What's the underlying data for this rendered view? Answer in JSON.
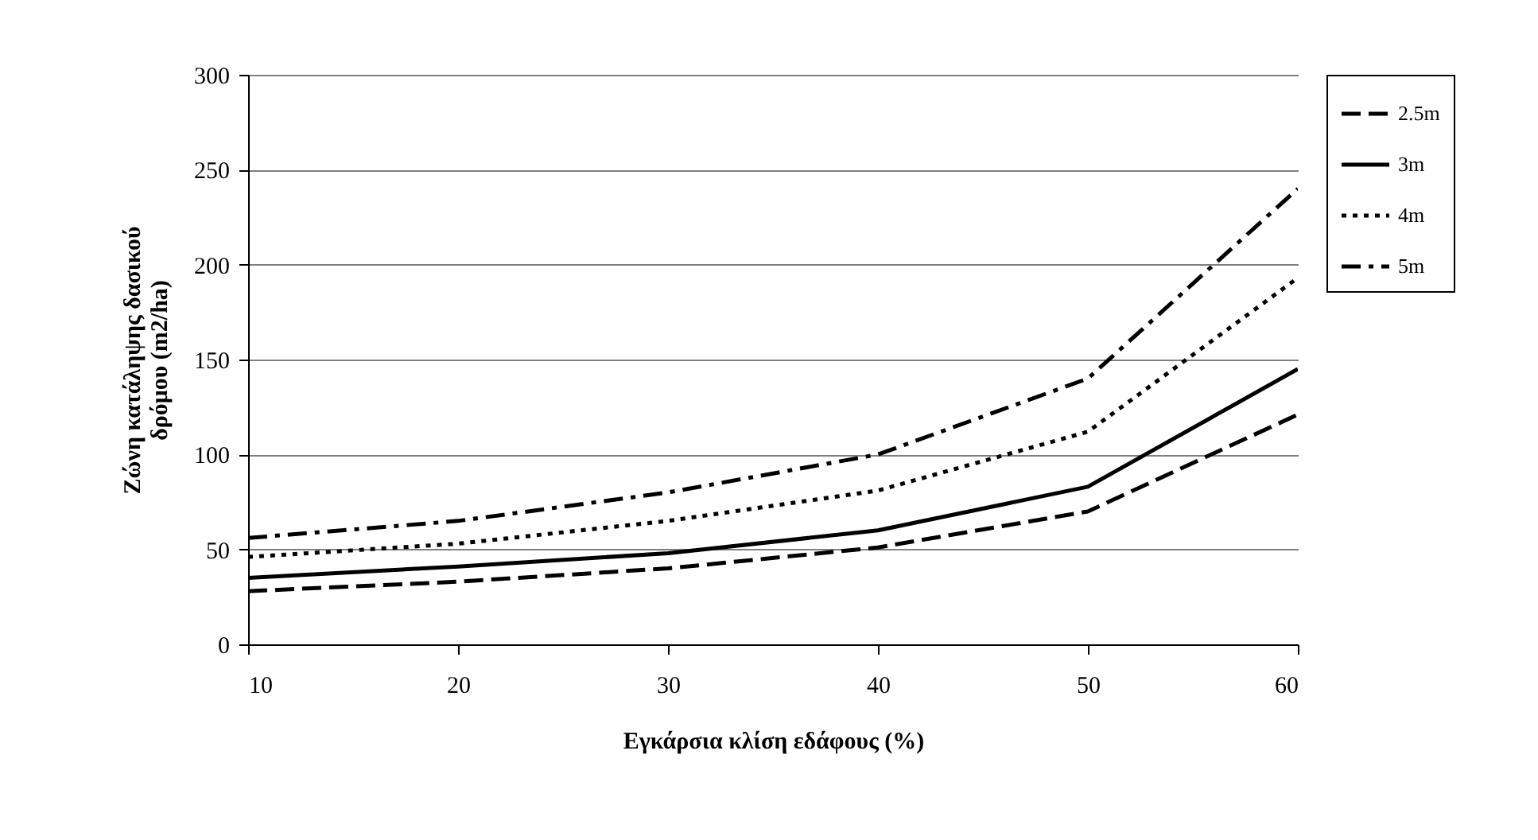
{
  "chart_data": {
    "type": "line",
    "xlabel": "Εγκάρσια κλίση εδάφους (%)",
    "ylabel": "Ζώνη κατάληψης δασικού\nδρόμου (m2/ha)",
    "x": [
      10,
      20,
      30,
      40,
      50,
      60
    ],
    "xlim": [
      10,
      60
    ],
    "xticks": [
      10,
      20,
      30,
      40,
      50,
      60
    ],
    "ylim": [
      0,
      300
    ],
    "yticks": [
      0,
      50,
      100,
      150,
      200,
      250,
      300
    ],
    "grid": "y",
    "legend": "right",
    "marker": "none",
    "series": [
      {
        "name": "2.5m",
        "color": "#000000",
        "line_style": "dashed",
        "values": [
          28,
          33,
          40,
          51,
          70,
          121
        ]
      },
      {
        "name": "3m",
        "color": "#000000",
        "line_style": "solid",
        "values": [
          35,
          41,
          48,
          60,
          83,
          145
        ]
      },
      {
        "name": "4m",
        "color": "#000000",
        "line_style": "dotted",
        "values": [
          46,
          53,
          65,
          81,
          112,
          193
        ]
      },
      {
        "name": "5m",
        "color": "#000000",
        "line_style": "dashdot",
        "values": [
          56,
          65,
          80,
          100,
          140,
          240
        ]
      }
    ]
  }
}
